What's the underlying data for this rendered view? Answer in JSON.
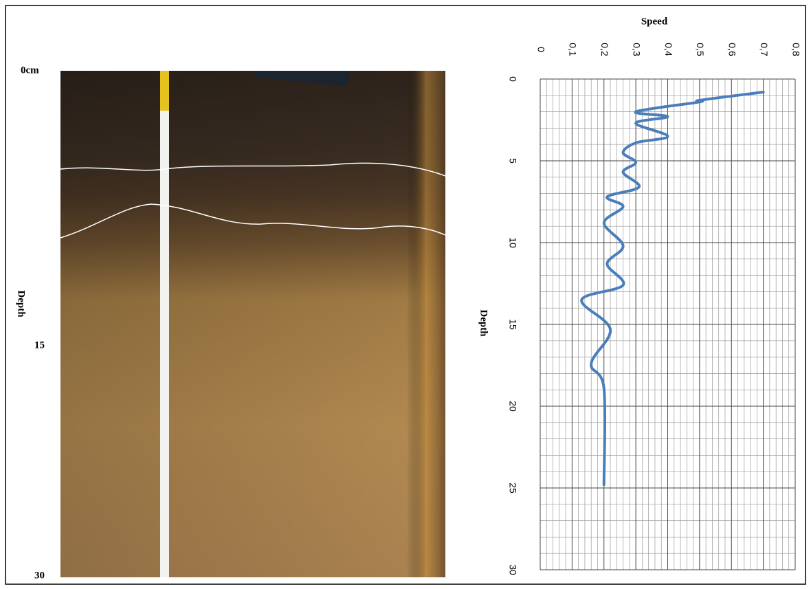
{
  "photo": {
    "scale_labels": [
      "0cm",
      "15",
      "30"
    ],
    "depth_label": "Depth"
  },
  "chart_data": {
    "type": "line",
    "x_label": "Speed",
    "y_label": "Depth",
    "x": [
      0.7,
      0.5,
      0.5,
      0.3,
      0.4,
      0.3,
      0.4,
      0.3,
      0.26,
      0.3,
      0.26,
      0.31,
      0.21,
      0.26,
      0.2,
      0.26,
      0.21,
      0.26,
      0.13,
      0.22,
      0.16,
      0.2,
      0.2
    ],
    "series": [
      {
        "color": "#4a7ebb",
        "values": [
          0.8,
          1.3,
          1.4,
          2.0,
          2.3,
          2.7,
          3.5,
          3.9,
          4.5,
          5.1,
          5.7,
          6.6,
          7.2,
          7.8,
          8.8,
          10.2,
          11.3,
          12.6,
          13.5,
          15.3,
          17.4,
          18.9,
          24.8
        ]
      }
    ],
    "xlim": [
      0,
      0.8
    ],
    "xticks": [
      0,
      {
        "value": 0.1,
        "label": "0,1"
      },
      {
        "value": 0.2,
        "label": "0,2"
      },
      {
        "value": 0.3,
        "label": "0,3"
      },
      {
        "value": 0.4,
        "label": "0,4"
      },
      {
        "value": 0.5,
        "label": "0,5"
      },
      {
        "value": 0.6,
        "label": "0,6"
      },
      {
        "value": 0.7,
        "label": "0,7"
      },
      {
        "value": 0.8,
        "label": "0,8"
      }
    ],
    "ylim": [
      0,
      30
    ],
    "y_inverted": true,
    "yticks": [
      0,
      5,
      10,
      15,
      20,
      25,
      30
    ],
    "grid": true,
    "minor_divisions": 5
  }
}
